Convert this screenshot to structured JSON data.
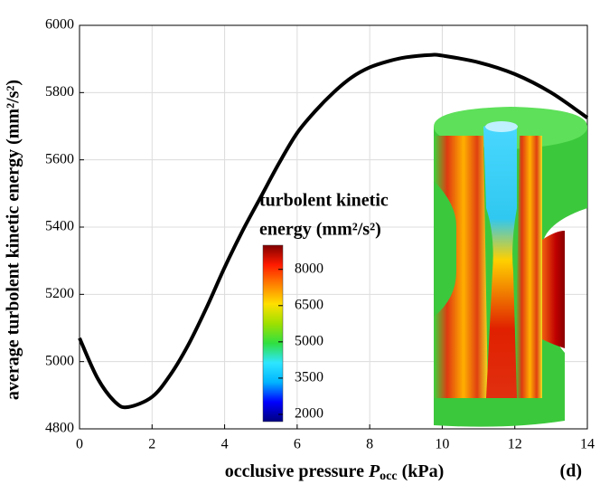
{
  "chart_data": {
    "type": "line",
    "x_label": [
      "occlusive pressure ",
      "P",
      "occ",
      " (kPa)"
    ],
    "y_label": "average turbolent kinetic energy (mm²/s²)",
    "panel_label": "(d)",
    "x": [
      0,
      0.5,
      1,
      1.35,
      2,
      2.5,
      3,
      3.5,
      4,
      4.5,
      5,
      5.5,
      6,
      6.5,
      7,
      7.5,
      8,
      8.5,
      9,
      9.7,
      10,
      11,
      12,
      13,
      14
    ],
    "series": [
      {
        "name": null,
        "color": "#000000",
        "values": [
          5070,
          4950,
          4878,
          4865,
          4895,
          4960,
          5050,
          5160,
          5280,
          5390,
          5490,
          5590,
          5680,
          5745,
          5800,
          5845,
          5875,
          5893,
          5905,
          5912,
          5910,
          5890,
          5855,
          5800,
          5725
        ]
      }
    ],
    "xlim": [
      0,
      14
    ],
    "xticks": [
      0,
      2,
      4,
      6,
      8,
      10,
      12,
      14
    ],
    "ylim": [
      4800,
      6000
    ],
    "yticks": [
      4800,
      5000,
      5200,
      5400,
      5600,
      5800,
      6000
    ],
    "grid": true,
    "colorbar": {
      "title": [
        "turbolent kinetic",
        "energy (mm²/s²)"
      ],
      "lim": [
        1700,
        9000
      ],
      "ticks": [
        2000,
        3500,
        5000,
        6500,
        8000
      ],
      "colors": [
        "#00007f",
        "#0000ff",
        "#00b4ff",
        "#2ee6ff",
        "#30e040",
        "#9fe000",
        "#ffe000",
        "#ff8000",
        "#ff1a00",
        "#7f0000"
      ]
    }
  }
}
